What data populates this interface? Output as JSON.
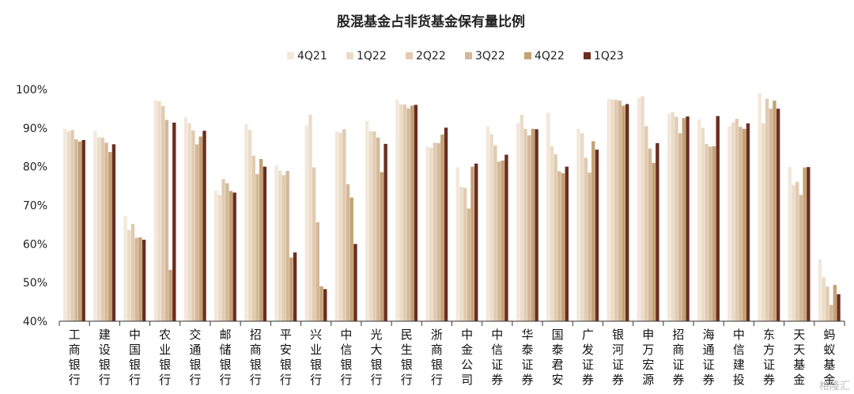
{
  "chart_data": {
    "type": "bar",
    "title": "股混基金占非货基金保有量比例",
    "ylim": [
      0.4,
      1.0
    ],
    "yticks": [
      "100%",
      "90%",
      "80%",
      "70%",
      "60%",
      "50%",
      "40%"
    ],
    "legend_position": "top",
    "categories": [
      "工商银行",
      "建设银行",
      "中国银行",
      "农业银行",
      "交通银行",
      "邮储银行",
      "招商银行",
      "平安银行",
      "兴业银行",
      "中信银行",
      "光大银行",
      "民生银行",
      "浙商银行",
      "中金公司",
      "中信证券",
      "华泰证券",
      "国泰君安",
      "广发证券",
      "银河证券",
      "申万宏源",
      "招商证券",
      "海通证券",
      "中信建投",
      "东方证券",
      "天天基金",
      "蚂蚁基金"
    ],
    "series": [
      {
        "name": "4Q21",
        "color": "#f3e8db",
        "values": [
          0.898,
          0.892,
          0.672,
          0.972,
          0.928,
          0.738,
          0.91,
          0.803,
          0.908,
          0.891,
          0.918,
          0.974,
          0.852,
          0.798,
          0.905,
          0.912,
          0.94,
          0.898,
          0.975,
          0.978,
          0.938,
          0.922,
          0.905,
          0.99,
          0.8,
          0.56
        ]
      },
      {
        "name": "1Q22",
        "color": "#ebdcc8",
        "values": [
          0.892,
          0.876,
          0.636,
          0.969,
          0.912,
          0.727,
          0.895,
          0.789,
          0.935,
          0.888,
          0.892,
          0.961,
          0.849,
          0.748,
          0.884,
          0.934,
          0.853,
          0.887,
          0.974,
          0.983,
          0.941,
          0.901,
          0.915,
          0.912,
          0.752,
          0.513
        ]
      },
      {
        "name": "2Q22",
        "color": "#e1cbb1",
        "values": [
          0.895,
          0.875,
          0.652,
          0.957,
          0.894,
          0.768,
          0.828,
          0.778,
          0.798,
          0.897,
          0.891,
          0.961,
          0.862,
          0.745,
          0.855,
          0.898,
          0.832,
          0.823,
          0.973,
          0.905,
          0.929,
          0.859,
          0.924,
          0.976,
          0.761,
          0.49
        ]
      },
      {
        "name": "3Q22",
        "color": "#d4b89a",
        "values": [
          0.871,
          0.862,
          0.616,
          0.921,
          0.858,
          0.757,
          0.781,
          0.789,
          0.656,
          0.755,
          0.875,
          0.951,
          0.861,
          0.692,
          0.813,
          0.881,
          0.788,
          0.785,
          0.971,
          0.847,
          0.887,
          0.852,
          0.903,
          0.95,
          0.727,
          0.442
        ]
      },
      {
        "name": "4Q22",
        "color": "#c4a274",
        "values": [
          0.865,
          0.838,
          0.617,
          0.533,
          0.878,
          0.737,
          0.82,
          0.565,
          0.49,
          0.72,
          0.786,
          0.958,
          0.883,
          0.8,
          0.816,
          0.898,
          0.783,
          0.866,
          0.958,
          0.81,
          0.926,
          0.853,
          0.898,
          0.971,
          0.798,
          0.494
        ]
      },
      {
        "name": "1Q23",
        "color": "#6b2d20",
        "values": [
          0.869,
          0.858,
          0.611,
          0.914,
          0.893,
          0.733,
          0.8,
          0.578,
          0.483,
          0.6,
          0.859,
          0.96,
          0.901,
          0.808,
          0.831,
          0.897,
          0.8,
          0.844,
          0.962,
          0.861,
          0.93,
          0.931,
          0.912,
          0.95,
          0.799,
          0.47
        ]
      }
    ]
  },
  "watermark": "格隆汇"
}
